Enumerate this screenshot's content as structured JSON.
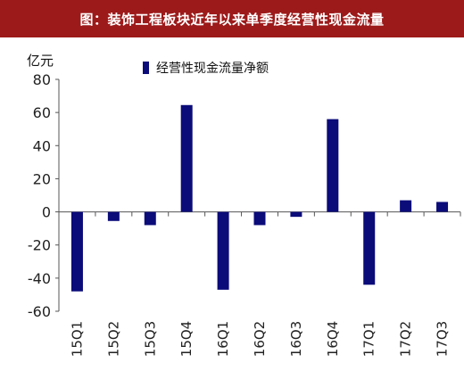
{
  "header": {
    "title": "图：装饰工程板块近年以来单季度经营性现金流量"
  },
  "chart_data": {
    "type": "bar",
    "title": "",
    "ylabel": "亿元",
    "xlabel": "",
    "categories": [
      "15Q1",
      "15Q2",
      "15Q3",
      "15Q4",
      "16Q1",
      "16Q2",
      "16Q3",
      "16Q4",
      "17Q1",
      "17Q2",
      "17Q3"
    ],
    "series": [
      {
        "name": "经营性现金流量净额",
        "values": [
          -48,
          -5.5,
          -8,
          64.5,
          -47,
          -8,
          -3,
          56,
          -44,
          7,
          6
        ],
        "color": "#0b0b7a"
      }
    ],
    "ylim": [
      -60,
      80
    ],
    "yticks": [
      80,
      60,
      40,
      20,
      0,
      -20,
      -40,
      -60
    ],
    "grid": false,
    "legend": "top"
  }
}
